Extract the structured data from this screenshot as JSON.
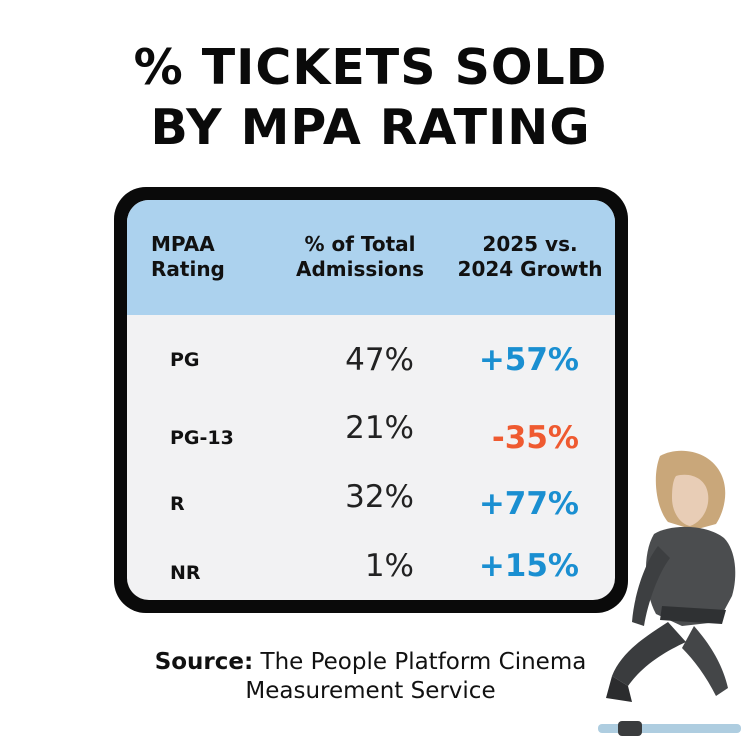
{
  "title_line1": "% TICKETS SOLD",
  "title_line2": "BY MPA RATING",
  "table": {
    "headers": [
      "MPAA\nRating",
      "% of Total\nAdmissions",
      "2025 vs.\n2024 Growth"
    ],
    "rows": [
      {
        "rating": "PG",
        "share": "47%",
        "growth": "+57%",
        "growth_color": "#1a8fd1"
      },
      {
        "rating": "PG-13",
        "share": "21%",
        "growth": "-35%",
        "growth_color": "#ef5a30"
      },
      {
        "rating": "R",
        "share": "32%",
        "growth": "+77%",
        "growth_color": "#1a8fd1"
      },
      {
        "rating": "NR",
        "share": "1%",
        "growth": "+15%",
        "growth_color": "#1a8fd1"
      }
    ]
  },
  "source": {
    "label": "Source:",
    "text": "The People Platform Cinema",
    "text_line2": "Measurement Service"
  },
  "colors": {
    "header_bg": "#acd2ee",
    "positive": "#1a8fd1",
    "negative": "#ef5a30"
  }
}
